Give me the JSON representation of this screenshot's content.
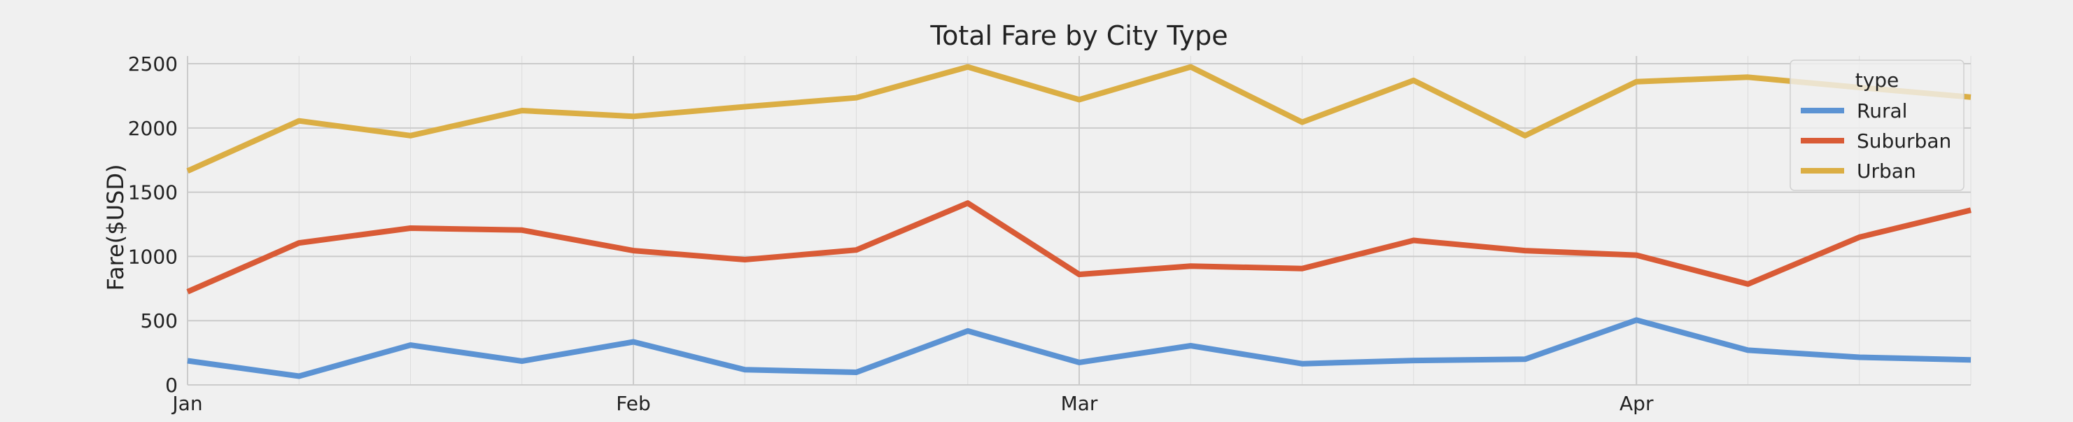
{
  "chart_data": {
    "type": "line",
    "title": "Total Fare by City Type",
    "xlabel": "",
    "ylabel": "Fare($USD)",
    "x": [
      "2019-01-06",
      "2019-01-13",
      "2019-01-20",
      "2019-01-27",
      "2019-02-03",
      "2019-02-10",
      "2019-02-17",
      "2019-02-24",
      "2019-03-03",
      "2019-03-10",
      "2019-03-17",
      "2019-03-24",
      "2019-03-31",
      "2019-04-07",
      "2019-04-14",
      "2019-04-21",
      "2019-04-28"
    ],
    "x_tick_labels": [
      "Jan",
      "Feb",
      "Mar",
      "Apr"
    ],
    "x_tick_dates": [
      "2019-01-06",
      "2019-02-03",
      "2019-03-03",
      "2019-04-07"
    ],
    "xlim": [
      "2019-01-06",
      "2019-04-28"
    ],
    "y_ticks": [
      0,
      500,
      1000,
      1500,
      2000,
      2500
    ],
    "ylim": [
      0,
      2560
    ],
    "grid": true,
    "legend_title": "type",
    "legend_position": "upper right",
    "series": [
      {
        "name": "Rural",
        "color": "#5c93d3",
        "values": [
          188,
          68,
          310,
          185,
          335,
          118,
          98,
          420,
          175,
          305,
          165,
          190,
          200,
          505,
          270,
          215,
          195
        ]
      },
      {
        "name": "Suburban",
        "color": "#d95b36",
        "values": [
          725,
          1105,
          1220,
          1205,
          1045,
          975,
          1050,
          1415,
          860,
          925,
          905,
          1125,
          1045,
          1010,
          785,
          1150,
          1360
        ]
      },
      {
        "name": "Urban",
        "color": "#dbae44",
        "values": [
          1665,
          2055,
          1940,
          2135,
          2090,
          2165,
          2235,
          2475,
          2220,
          2475,
          2045,
          2370,
          1940,
          2360,
          2395,
          2315,
          2240
        ]
      }
    ]
  }
}
